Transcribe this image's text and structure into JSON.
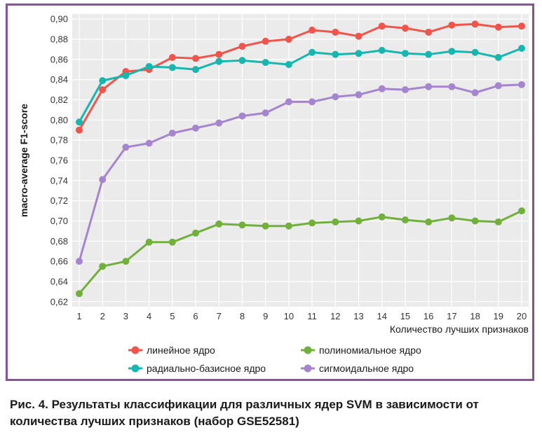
{
  "colors": {
    "frame": "#8c4f99",
    "plot_bg": "#ebebeb",
    "grid": "#ffffff",
    "linear": "#f0544a",
    "rbf": "#17b7b0",
    "poly": "#72b03c",
    "sigmoid": "#a585cd"
  },
  "chart_data": {
    "type": "line",
    "title": "",
    "xlabel": "Количество лучших признаков",
    "ylabel": "macro-average F1-score",
    "x": [
      1,
      2,
      3,
      4,
      5,
      6,
      7,
      8,
      9,
      10,
      11,
      12,
      13,
      14,
      15,
      16,
      17,
      18,
      19,
      20
    ],
    "xticks": [
      "1",
      "2",
      "3",
      "4",
      "5",
      "6",
      "7",
      "8",
      "9",
      "10",
      "11",
      "12",
      "13",
      "14",
      "15",
      "16",
      "17",
      "18",
      "19",
      "20"
    ],
    "ylim": [
      0.615,
      0.905
    ],
    "yticks": [
      0.62,
      0.64,
      0.66,
      0.68,
      0.7,
      0.72,
      0.74,
      0.76,
      0.78,
      0.8,
      0.82,
      0.84,
      0.86,
      0.88,
      0.9
    ],
    "ytick_labels": [
      "0,62",
      "0,64",
      "0,66",
      "0,68",
      "0,70",
      "0,72",
      "0,74",
      "0,76",
      "0,78",
      "0,80",
      "0,82",
      "0,84",
      "0,86",
      "0,88",
      "0,90"
    ],
    "grid": true,
    "legend_position": "bottom",
    "series": [
      {
        "name": "линейное ядро",
        "color": "#f0544a",
        "values": [
          0.79,
          0.83,
          0.848,
          0.85,
          0.862,
          0.861,
          0.865,
          0.873,
          0.878,
          0.88,
          0.889,
          0.887,
          0.883,
          0.893,
          0.891,
          0.887,
          0.894,
          0.895,
          0.892,
          0.893
        ]
      },
      {
        "name": "радиально-базисное ядро",
        "color": "#17b7b0",
        "values": [
          0.798,
          0.839,
          0.844,
          0.853,
          0.852,
          0.85,
          0.858,
          0.859,
          0.857,
          0.855,
          0.867,
          0.865,
          0.866,
          0.869,
          0.866,
          0.865,
          0.868,
          0.867,
          0.862,
          0.871
        ]
      },
      {
        "name": "полиномиальное ядро",
        "color": "#72b03c",
        "values": [
          0.628,
          0.655,
          0.66,
          0.679,
          0.679,
          0.688,
          0.697,
          0.696,
          0.695,
          0.695,
          0.698,
          0.699,
          0.7,
          0.704,
          0.701,
          0.699,
          0.703,
          0.7,
          0.699,
          0.71
        ]
      },
      {
        "name": "сигмоидальное ядро",
        "color": "#a585cd",
        "values": [
          0.66,
          0.741,
          0.773,
          0.777,
          0.787,
          0.792,
          0.797,
          0.804,
          0.807,
          0.818,
          0.818,
          0.823,
          0.825,
          0.831,
          0.83,
          0.833,
          0.833,
          0.827,
          0.834,
          0.835
        ]
      }
    ]
  },
  "legend": [
    {
      "label": "линейное ядро",
      "color": "#f0544a"
    },
    {
      "label": "полиномиальное ядро",
      "color": "#72b03c"
    },
    {
      "label": "радиально-базисное ядро",
      "color": "#17b7b0"
    },
    {
      "label": "сигмоидальное ядро",
      "color": "#a585cd"
    }
  ],
  "caption": "Рис. 4. Результаты классификации для различных ядер SVM в зависимости от количества лучших признаков (набор GSE52581)"
}
